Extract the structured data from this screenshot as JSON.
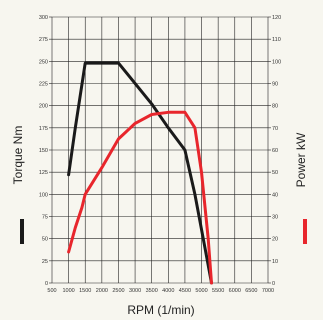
{
  "chart_data": {
    "type": "line",
    "title": "",
    "xlabel": "RPM (1/min)",
    "ylabel_left": "Torque Nm",
    "ylabel_right": "Power kW",
    "x_range": [
      500,
      7000
    ],
    "y_left_range": [
      0,
      300
    ],
    "y_right_range": [
      0,
      120
    ],
    "grid": true,
    "x_ticks": [
      500,
      1000,
      1500,
      2000,
      2500,
      3000,
      3500,
      4000,
      4500,
      5000,
      5500,
      6000,
      6500,
      7000
    ],
    "y_left_ticks": [
      0,
      25,
      50,
      75,
      100,
      125,
      150,
      175,
      200,
      225,
      250,
      275,
      300
    ],
    "y_right_ticks": [
      0,
      10,
      20,
      30,
      40,
      50,
      60,
      70,
      80,
      90,
      100,
      110,
      120
    ],
    "colors": {
      "torque": "#1a1a1a",
      "power": "#e8262c",
      "grid": "#222222"
    },
    "series": [
      {
        "name": "Torque Nm",
        "axis": "left",
        "color": "#1a1a1a",
        "x": [
          1000,
          1200,
          1500,
          2500,
          3500,
          4000,
          4500,
          4800,
          5100,
          5300
        ],
        "y": [
          122,
          175,
          248,
          248,
          202,
          175,
          150,
          100,
          40,
          0
        ]
      },
      {
        "name": "Power kW",
        "axis": "right",
        "color": "#e8262c",
        "x": [
          1000,
          1200,
          1400,
          1500,
          2000,
          2500,
          3000,
          3500,
          4000,
          4500,
          4800,
          5000,
          5200,
          5300
        ],
        "y": [
          14,
          25,
          34,
          40,
          52,
          65,
          72,
          76,
          77,
          77,
          70,
          50,
          20,
          0
        ]
      }
    ]
  }
}
